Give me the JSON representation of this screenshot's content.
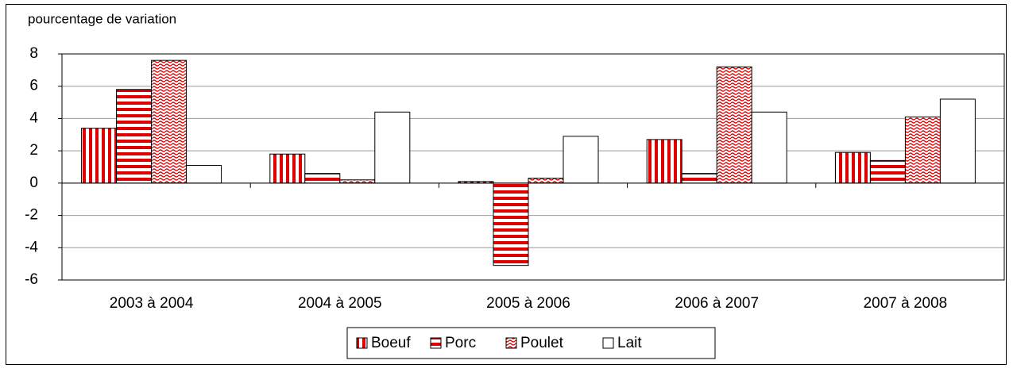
{
  "chart_data": {
    "type": "bar",
    "y_axis_label": "pourcentage de variation",
    "categories": [
      "2003 à 2004",
      "2004 à 2005",
      "2005 à 2006",
      "2006 à 2007",
      "2007 à 2008"
    ],
    "series": [
      {
        "name": "Boeuf",
        "color": "#e00000",
        "pattern": "vertical",
        "values": [
          3.4,
          1.8,
          0.1,
          2.7,
          1.9
        ]
      },
      {
        "name": "Porc",
        "color": "#e00000",
        "pattern": "horizontal",
        "values": [
          5.8,
          0.6,
          -5.1,
          0.6,
          1.4
        ]
      },
      {
        "name": "Poulet",
        "color": "#e00000",
        "pattern": "wave",
        "values": [
          7.6,
          0.2,
          0.3,
          7.2,
          4.1
        ]
      },
      {
        "name": "Lait",
        "color": "#ffffff",
        "pattern": "solid",
        "values": [
          1.1,
          4.4,
          2.9,
          4.4,
          5.2
        ]
      }
    ],
    "ylim": [
      -6,
      8
    ],
    "yticks": [
      -6,
      -4,
      -2,
      0,
      2,
      4,
      6,
      8
    ],
    "grid": true,
    "legend": "bottom"
  }
}
